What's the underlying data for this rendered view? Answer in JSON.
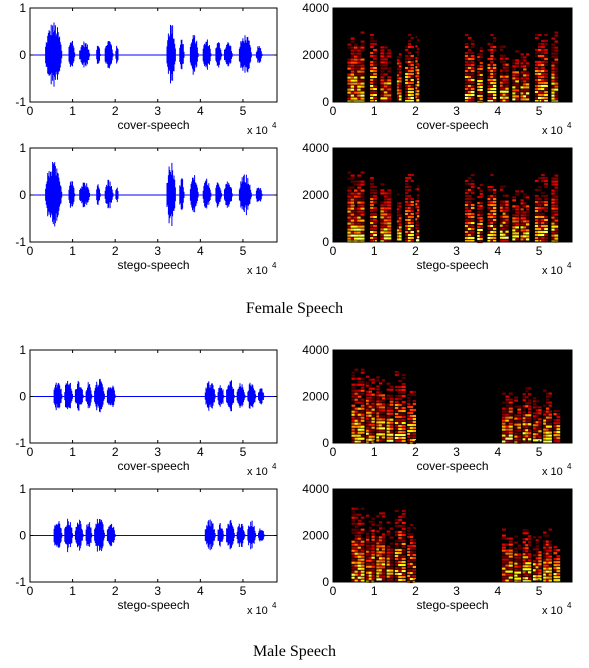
{
  "captions": {
    "female": "Female Speech",
    "male": "Male Speech"
  },
  "colors": {
    "waveform": "#0000ff",
    "axis": "#000000",
    "spec_bg": "#000000"
  },
  "chart_data": [
    {
      "id": "female-cover-waveform",
      "type": "line",
      "group": "Female Speech",
      "xlabel": "cover-speech",
      "x_multiplier": "x 10",
      "x_exponent": "4",
      "xlim": [
        0,
        5.8
      ],
      "ylim": [
        -1,
        1
      ],
      "xticks": [
        "0",
        "1",
        "2",
        "3",
        "4",
        "5"
      ],
      "yticks": [
        "-1",
        "0",
        "1"
      ],
      "bursts": [
        [
          0.35,
          0.75,
          0.72
        ],
        [
          0.9,
          1.05,
          0.38
        ],
        [
          1.15,
          1.4,
          0.3
        ],
        [
          1.55,
          1.65,
          0.28
        ],
        [
          1.75,
          1.95,
          0.35
        ],
        [
          2.0,
          2.08,
          0.2
        ],
        [
          3.2,
          3.42,
          0.72
        ],
        [
          3.5,
          3.62,
          0.38
        ],
        [
          3.75,
          3.95,
          0.45
        ],
        [
          4.05,
          4.25,
          0.35
        ],
        [
          4.35,
          4.5,
          0.3
        ],
        [
          4.55,
          4.75,
          0.3
        ],
        [
          4.9,
          5.2,
          0.45
        ],
        [
          5.3,
          5.45,
          0.2
        ]
      ]
    },
    {
      "id": "female-cover-spectrogram",
      "type": "heatmap",
      "group": "Female Speech",
      "xlabel": "cover-speech",
      "x_multiplier": "x 10",
      "x_exponent": "4",
      "xlim": [
        0,
        5.8
      ],
      "ylim": [
        0,
        4000
      ],
      "xticks": [
        "0",
        "1",
        "2",
        "3",
        "4",
        "5"
      ],
      "yticks": [
        "0",
        "2000",
        "4000"
      ],
      "segments": [
        [
          0.35,
          0.75,
          3000
        ],
        [
          0.9,
          1.05,
          2900
        ],
        [
          1.15,
          1.4,
          2500
        ],
        [
          1.55,
          1.65,
          2200
        ],
        [
          1.75,
          1.95,
          2900
        ],
        [
          2.0,
          2.08,
          2800
        ],
        [
          3.2,
          3.42,
          2900
        ],
        [
          3.5,
          3.62,
          2600
        ],
        [
          3.75,
          3.95,
          2900
        ],
        [
          4.05,
          4.25,
          2400
        ],
        [
          4.35,
          4.5,
          2200
        ],
        [
          4.55,
          4.75,
          2200
        ],
        [
          4.9,
          5.2,
          2900
        ],
        [
          5.3,
          5.45,
          3000
        ]
      ]
    },
    {
      "id": "female-stego-waveform",
      "type": "line",
      "group": "Female Speech",
      "xlabel": "stego-speech",
      "x_multiplier": "x 10",
      "x_exponent": "4",
      "xlim": [
        0,
        5.8
      ],
      "ylim": [
        -1,
        1
      ],
      "xticks": [
        "0",
        "1",
        "2",
        "3",
        "4",
        "5"
      ],
      "yticks": [
        "-1",
        "0",
        "1"
      ],
      "bursts": [
        [
          0.35,
          0.75,
          0.72
        ],
        [
          0.9,
          1.05,
          0.38
        ],
        [
          1.15,
          1.4,
          0.3
        ],
        [
          1.55,
          1.65,
          0.28
        ],
        [
          1.75,
          1.95,
          0.35
        ],
        [
          2.0,
          2.08,
          0.2
        ],
        [
          3.2,
          3.42,
          0.72
        ],
        [
          3.5,
          3.62,
          0.38
        ],
        [
          3.75,
          3.95,
          0.45
        ],
        [
          4.05,
          4.25,
          0.35
        ],
        [
          4.35,
          4.5,
          0.3
        ],
        [
          4.55,
          4.75,
          0.3
        ],
        [
          4.9,
          5.2,
          0.45
        ],
        [
          5.3,
          5.45,
          0.2
        ]
      ]
    },
    {
      "id": "female-stego-spectrogram",
      "type": "heatmap",
      "group": "Female Speech",
      "xlabel": "stego-speech",
      "x_multiplier": "x 10",
      "x_exponent": "4",
      "xlim": [
        0,
        5.8
      ],
      "ylim": [
        0,
        4000
      ],
      "xticks": [
        "0",
        "1",
        "2",
        "3",
        "4",
        "5"
      ],
      "yticks": [
        "0",
        "2000",
        "4000"
      ],
      "segments": [
        [
          0.35,
          0.75,
          3000
        ],
        [
          0.9,
          1.05,
          2900
        ],
        [
          1.15,
          1.4,
          2500
        ],
        [
          1.55,
          1.65,
          2200
        ],
        [
          1.75,
          1.95,
          2900
        ],
        [
          2.0,
          2.08,
          2800
        ],
        [
          3.2,
          3.42,
          2900
        ],
        [
          3.5,
          3.62,
          2600
        ],
        [
          3.75,
          3.95,
          2900
        ],
        [
          4.05,
          4.25,
          2400
        ],
        [
          4.35,
          4.5,
          2200
        ],
        [
          4.55,
          4.75,
          2200
        ],
        [
          4.9,
          5.2,
          2900
        ],
        [
          5.3,
          5.45,
          3000
        ]
      ]
    },
    {
      "id": "male-cover-waveform",
      "type": "line",
      "group": "Male Speech",
      "xlabel": "cover-speech",
      "x_multiplier": "x 10",
      "x_exponent": "4",
      "xlim": [
        0,
        5.8
      ],
      "ylim": [
        -1,
        1
      ],
      "xticks": [
        "0",
        "1",
        "2",
        "3",
        "4",
        "5"
      ],
      "yticks": [
        "-1",
        "0",
        "1"
      ],
      "bursts": [
        [
          0.55,
          0.75,
          0.35
        ],
        [
          0.8,
          1.0,
          0.38
        ],
        [
          1.05,
          1.25,
          0.35
        ],
        [
          1.3,
          1.45,
          0.32
        ],
        [
          1.5,
          1.75,
          0.4
        ],
        [
          1.8,
          2.0,
          0.3
        ],
        [
          4.1,
          4.35,
          0.35
        ],
        [
          4.4,
          4.55,
          0.28
        ],
        [
          4.6,
          4.8,
          0.38
        ],
        [
          4.85,
          5.05,
          0.3
        ],
        [
          5.1,
          5.3,
          0.35
        ],
        [
          5.35,
          5.5,
          0.2
        ]
      ]
    },
    {
      "id": "male-cover-spectrogram",
      "type": "heatmap",
      "group": "Male Speech",
      "xlabel": "cover-speech",
      "x_multiplier": "x 10",
      "x_exponent": "4",
      "xlim": [
        0,
        5.8
      ],
      "ylim": [
        0,
        4000
      ],
      "xticks": [
        "0",
        "1",
        "2",
        "3",
        "4",
        "5"
      ],
      "yticks": [
        "0",
        "2000",
        "4000"
      ],
      "segments": [
        [
          0.45,
          0.75,
          3200
        ],
        [
          0.8,
          1.0,
          2900
        ],
        [
          1.05,
          1.25,
          3000
        ],
        [
          1.3,
          1.45,
          2600
        ],
        [
          1.5,
          1.75,
          3100
        ],
        [
          1.8,
          2.0,
          2500
        ],
        [
          4.1,
          4.35,
          2300
        ],
        [
          4.4,
          4.55,
          2000
        ],
        [
          4.6,
          4.8,
          2400
        ],
        [
          4.85,
          5.05,
          2100
        ],
        [
          5.1,
          5.3,
          2300
        ],
        [
          5.35,
          5.5,
          1800
        ]
      ]
    },
    {
      "id": "male-stego-waveform",
      "type": "line",
      "group": "Male Speech",
      "xlabel": "stego-speech",
      "x_multiplier": "x 10",
      "x_exponent": "4",
      "xlim": [
        0,
        5.8
      ],
      "ylim": [
        -1,
        1
      ],
      "xticks": [
        "0",
        "1",
        "2",
        "3",
        "4",
        "5"
      ],
      "yticks": [
        "-1",
        "0",
        "1"
      ],
      "bursts": [
        [
          0.55,
          0.75,
          0.35
        ],
        [
          0.8,
          1.0,
          0.38
        ],
        [
          1.05,
          1.25,
          0.35
        ],
        [
          1.3,
          1.45,
          0.32
        ],
        [
          1.5,
          1.75,
          0.4
        ],
        [
          1.8,
          2.0,
          0.3
        ],
        [
          4.1,
          4.35,
          0.35
        ],
        [
          4.4,
          4.55,
          0.28
        ],
        [
          4.6,
          4.8,
          0.38
        ],
        [
          4.85,
          5.05,
          0.3
        ],
        [
          5.1,
          5.3,
          0.35
        ],
        [
          5.35,
          5.5,
          0.2
        ]
      ]
    },
    {
      "id": "male-stego-spectrogram",
      "type": "heatmap",
      "group": "Male Speech",
      "xlabel": "stego-speech",
      "x_multiplier": "x 10",
      "x_exponent": "4",
      "xlim": [
        0,
        5.8
      ],
      "ylim": [
        0,
        4000
      ],
      "xticks": [
        "0",
        "1",
        "2",
        "3",
        "4",
        "5"
      ],
      "yticks": [
        "0",
        "2000",
        "4000"
      ],
      "segments": [
        [
          0.45,
          0.75,
          3200
        ],
        [
          0.8,
          1.0,
          2900
        ],
        [
          1.05,
          1.25,
          3000
        ],
        [
          1.3,
          1.45,
          2600
        ],
        [
          1.5,
          1.75,
          3100
        ],
        [
          1.8,
          2.0,
          2500
        ],
        [
          4.1,
          4.35,
          2300
        ],
        [
          4.4,
          4.55,
          2000
        ],
        [
          4.6,
          4.8,
          2400
        ],
        [
          4.85,
          5.05,
          2100
        ],
        [
          5.1,
          5.3,
          2300
        ],
        [
          5.35,
          5.5,
          1800
        ]
      ]
    }
  ]
}
